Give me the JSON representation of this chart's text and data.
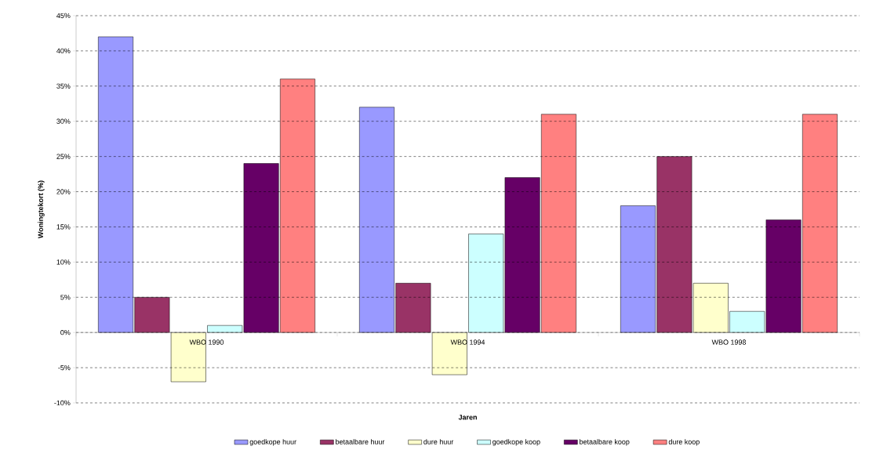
{
  "chart_data": {
    "type": "bar",
    "xlabel": "Jaren",
    "ylabel": "Woningtekort (%)",
    "categories": [
      "WBO 1990",
      "WBO 1994",
      "WBO 1998"
    ],
    "series": [
      {
        "name": "goedkope huur",
        "color": "#9999ff",
        "values": [
          42,
          32,
          18
        ]
      },
      {
        "name": "betaalbare huur",
        "color": "#993366",
        "values": [
          5,
          7,
          25
        ]
      },
      {
        "name": "dure huur",
        "color": "#ffffcc",
        "values": [
          -7,
          -6,
          7
        ]
      },
      {
        "name": "goedkope koop",
        "color": "#ccffff",
        "values": [
          1,
          14,
          3
        ]
      },
      {
        "name": "betaalbare koop",
        "color": "#660066",
        "values": [
          24,
          22,
          16
        ]
      },
      {
        "name": "dure koop",
        "color": "#ff8080",
        "values": [
          36,
          31,
          31
        ]
      }
    ],
    "ylim": [
      -10,
      45
    ],
    "yticks": [
      {
        "value": -10,
        "label": "-10%"
      },
      {
        "value": -5,
        "label": "-5%"
      },
      {
        "value": 0,
        "label": "0%"
      },
      {
        "value": 5,
        "label": "5%"
      },
      {
        "value": 10,
        "label": "10%"
      },
      {
        "value": 15,
        "label": "15%"
      },
      {
        "value": 20,
        "label": "20%"
      },
      {
        "value": 25,
        "label": "25%"
      },
      {
        "value": 30,
        "label": "30%"
      },
      {
        "value": 35,
        "label": "35%"
      },
      {
        "value": 40,
        "label": "40%"
      },
      {
        "value": 45,
        "label": "45%"
      }
    ],
    "grid": "y",
    "legend": "bottom"
  }
}
